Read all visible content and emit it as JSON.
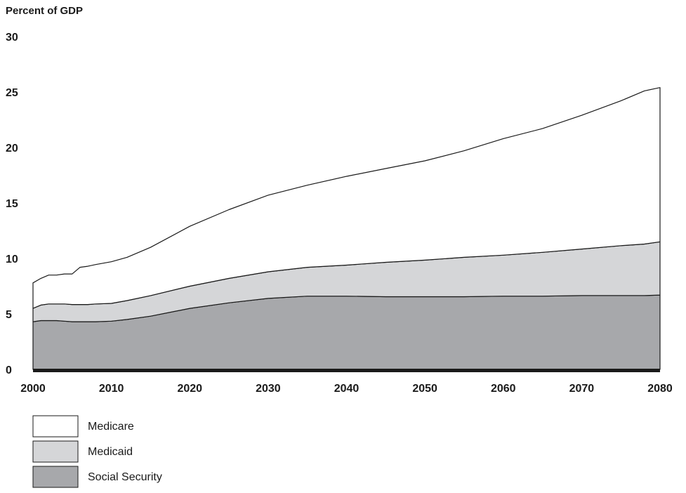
{
  "chart_data": {
    "type": "area",
    "stacked": true,
    "ylabel": "Percent of GDP",
    "xlabel": "",
    "title": "",
    "xlim": [
      2000,
      2080
    ],
    "ylim": [
      0,
      30
    ],
    "x_ticks": [
      "2000",
      "2010",
      "2020",
      "2030",
      "2040",
      "2050",
      "2060",
      "2070",
      "2080"
    ],
    "y_ticks": [
      "0",
      "5",
      "10",
      "15",
      "20",
      "25",
      "30"
    ],
    "grid": false,
    "legend_position": "bottom-left",
    "x": [
      2000,
      2001,
      2002,
      2003,
      2004,
      2005,
      2006,
      2007,
      2008,
      2010,
      2012,
      2015,
      2020,
      2025,
      2030,
      2035,
      2040,
      2045,
      2050,
      2055,
      2060,
      2065,
      2070,
      2075,
      2078,
      2080
    ],
    "series": [
      {
        "name": "Social Security",
        "color": "#a7a8ab",
        "values": [
          4.3,
          4.4,
          4.4,
          4.4,
          4.35,
          4.3,
          4.3,
          4.3,
          4.3,
          4.35,
          4.5,
          4.8,
          5.5,
          6.0,
          6.4,
          6.6,
          6.6,
          6.55,
          6.55,
          6.55,
          6.6,
          6.6,
          6.65,
          6.65,
          6.65,
          6.7
        ]
      },
      {
        "name": "Medicaid",
        "color": "#d5d6d8",
        "values": [
          1.2,
          1.4,
          1.5,
          1.5,
          1.55,
          1.55,
          1.55,
          1.55,
          1.6,
          1.6,
          1.7,
          1.85,
          2.0,
          2.2,
          2.4,
          2.6,
          2.8,
          3.1,
          3.3,
          3.55,
          3.7,
          3.95,
          4.2,
          4.5,
          4.65,
          4.8
        ]
      },
      {
        "name": "Medicare",
        "color": "#ffffff",
        "values": [
          2.3,
          2.4,
          2.6,
          2.6,
          2.7,
          2.75,
          3.35,
          3.45,
          3.55,
          3.75,
          3.9,
          4.35,
          5.4,
          6.2,
          6.9,
          7.4,
          8.0,
          8.45,
          8.95,
          9.6,
          10.5,
          11.15,
          12.05,
          13.05,
          13.8,
          13.9
        ]
      }
    ],
    "legend": [
      {
        "label": "Medicare",
        "color": "#ffffff"
      },
      {
        "label": "Medicaid",
        "color": "#d5d6d8"
      },
      {
        "label": "Social Security",
        "color": "#a7a8ab"
      }
    ]
  }
}
